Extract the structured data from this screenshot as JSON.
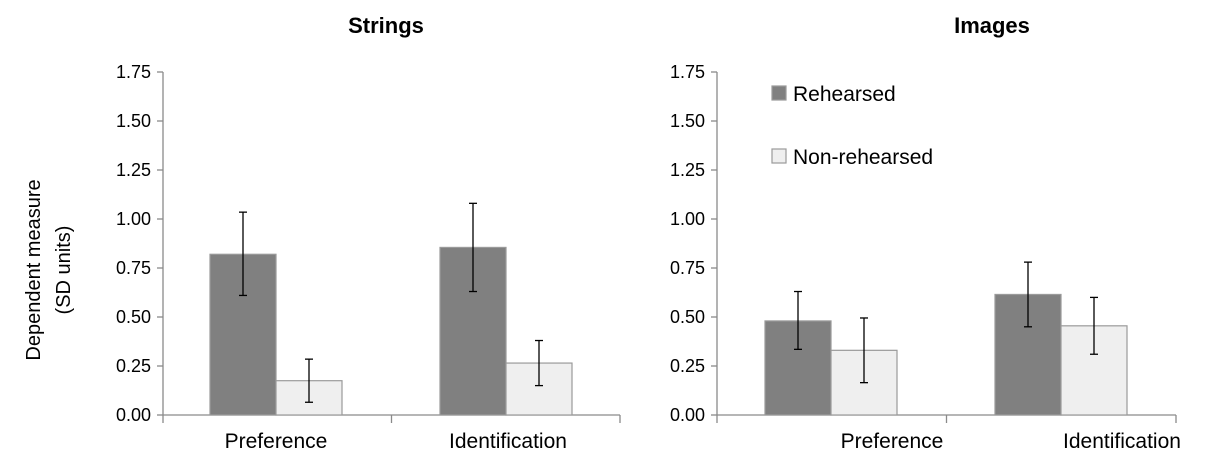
{
  "chart_data": [
    {
      "type": "bar",
      "title": "Strings",
      "ylabel": [
        "Dependent measure",
        "(SD units)"
      ],
      "xlabel": "",
      "categories": [
        "Preference",
        "Identification"
      ],
      "ylim": [
        0,
        1.75
      ],
      "yticks": [
        "0.00",
        "0.25",
        "0.50",
        "0.75",
        "1.00",
        "1.25",
        "1.50",
        "1.75"
      ],
      "grid": false,
      "legend": null,
      "series": [
        {
          "name": "Rehearsed",
          "color": "#808080",
          "values": [
            0.82,
            0.855
          ],
          "err_low": [
            0.61,
            0.63
          ],
          "err_high": [
            1.035,
            1.08
          ]
        },
        {
          "name": "Non-rehearsed",
          "color": "#efefef",
          "values": [
            0.175,
            0.265
          ],
          "err_low": [
            0.065,
            0.15
          ],
          "err_high": [
            0.285,
            0.38
          ]
        }
      ]
    },
    {
      "type": "bar",
      "title": "Images",
      "ylabel": "",
      "xlabel": "",
      "categories": [
        "Preference",
        "Identification"
      ],
      "ylim": [
        0,
        1.75
      ],
      "yticks": [
        "0.00",
        "0.25",
        "0.50",
        "0.75",
        "1.00",
        "1.25",
        "1.50",
        "1.75"
      ],
      "grid": false,
      "legend": "top-left",
      "series": [
        {
          "name": "Rehearsed",
          "color": "#808080",
          "values": [
            0.48,
            0.615
          ],
          "err_low": [
            0.335,
            0.45
          ],
          "err_high": [
            0.63,
            0.78
          ]
        },
        {
          "name": "Non-rehearsed",
          "color": "#efefef",
          "values": [
            0.33,
            0.455
          ],
          "err_low": [
            0.165,
            0.31
          ],
          "err_high": [
            0.495,
            0.6
          ]
        }
      ]
    }
  ]
}
